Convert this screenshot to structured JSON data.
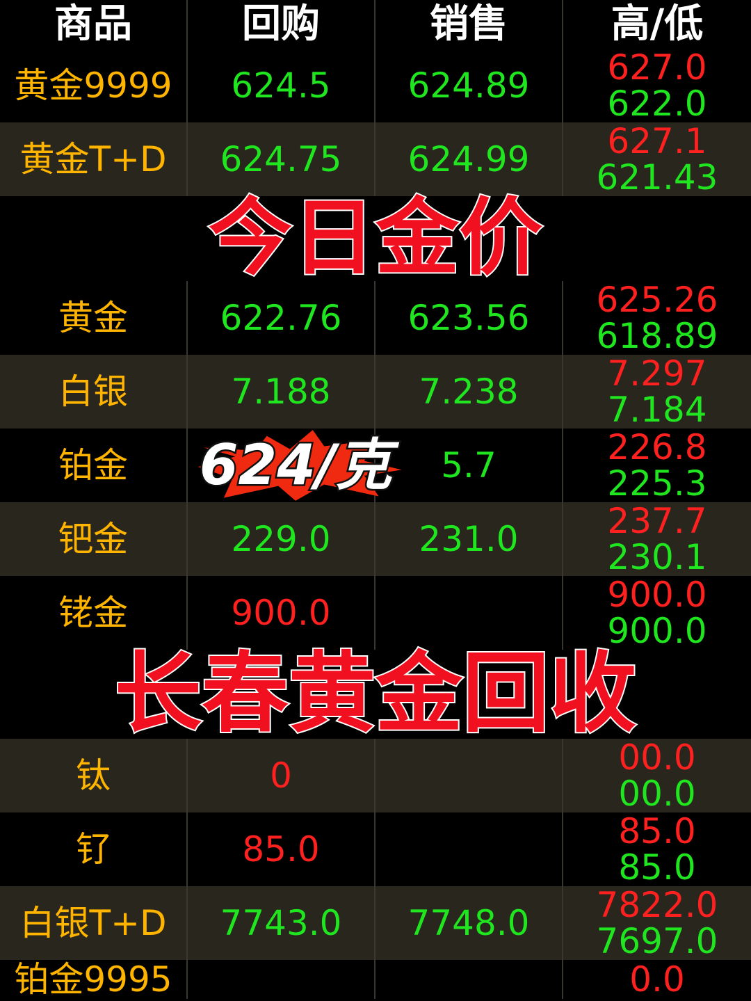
{
  "headers": [
    "商品",
    "回购",
    "销售",
    "高/低"
  ],
  "rows": [
    {
      "name": "黄金9999",
      "buy": "624.5",
      "sell": "624.89",
      "high": "627.0",
      "low": "622.0",
      "buy_color": "green"
    },
    {
      "name": "黄金T+D",
      "buy": "624.75",
      "sell": "624.99",
      "high": "627.1",
      "low": "621.43",
      "buy_color": "green"
    },
    {
      "name": "黄金",
      "buy": "622.76",
      "sell": "623.56",
      "high": "625.26",
      "low": "618.89",
      "buy_color": "green"
    },
    {
      "name": "白银",
      "buy": "7.188",
      "sell": "7.238",
      "high": "7.297",
      "low": "7.184",
      "buy_color": "green"
    },
    {
      "name": "铂金",
      "buy": "",
      "sell": "5.7",
      "high": "226.8",
      "low": "225.3",
      "buy_color": "green"
    },
    {
      "name": "钯金",
      "buy": "229.0",
      "sell": "231.0",
      "high": "237.7",
      "low": "230.1",
      "buy_color": "green"
    },
    {
      "name": "铑金",
      "buy": "900.0",
      "sell": "",
      "high": "900.0",
      "low": "900.0",
      "buy_color": "red"
    },
    {
      "name": "钛",
      "buy": "0",
      "sell": "",
      "high": "00.0",
      "low": "00.0",
      "buy_color": "red"
    },
    {
      "name": "钌",
      "buy": "85.0",
      "sell": "",
      "high": "85.0",
      "low": "85.0",
      "buy_color": "red"
    },
    {
      "name": "白银T+D",
      "buy": "7743.0",
      "sell": "7748.0",
      "high": "7822.0",
      "low": "7697.0",
      "buy_color": "green"
    },
    {
      "name": "铂金9995",
      "buy": "",
      "sell": "",
      "high": "0.0",
      "low": "",
      "buy_color": "green"
    }
  ],
  "overlay": {
    "title": "今日金价",
    "price": "624/克",
    "bottom": "长春黄金回收"
  },
  "colors": {
    "up": "#ff2020",
    "down": "#1fe61f",
    "name": "#ffb400",
    "alt_row": "#29261e"
  }
}
